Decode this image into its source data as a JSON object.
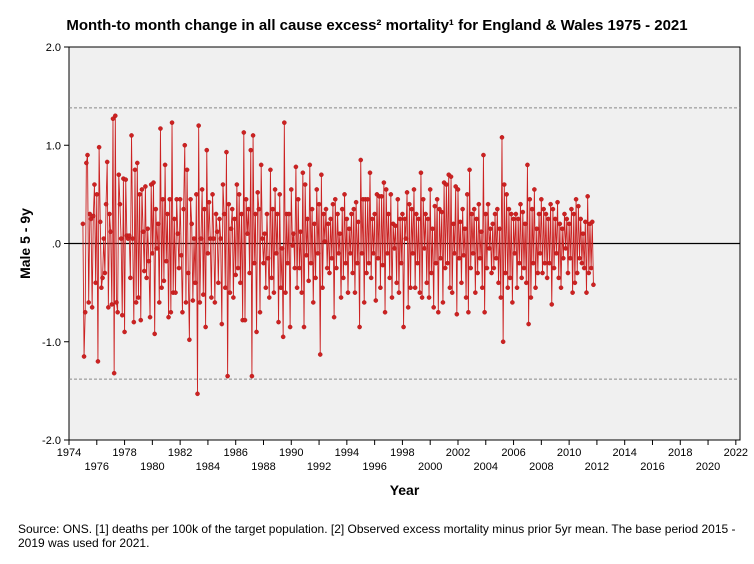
{
  "chart_data": {
    "type": "line",
    "title": "Month-to month change in all cause excess² mortality¹  for England & Wales 1975 - 2021",
    "xlabel": "Year",
    "ylabel": "Male 5 - 9y",
    "xlim": [
      1974,
      2022.3
    ],
    "ylim": [
      -2.0,
      2.0
    ],
    "x_ticks": [
      1974,
      1976,
      1978,
      1980,
      1982,
      1984,
      1986,
      1988,
      1990,
      1992,
      1994,
      1996,
      1998,
      2000,
      2002,
      2004,
      2006,
      2008,
      2010,
      2012,
      2014,
      2016,
      2018,
      2020,
      2022
    ],
    "x_tick_labels": [
      "1974",
      "1976",
      "1978",
      "1980",
      "1982",
      "1984",
      "1986",
      "1988",
      "1990",
      "1992",
      "1994",
      "1996",
      "1998",
      "2000",
      "2002",
      "2004",
      "2006",
      "2008",
      "2010",
      "2012",
      "2014",
      "2016",
      "2018",
      "2020",
      "2022"
    ],
    "y_ticks": [
      -2.0,
      -1.0,
      0.0,
      1.0,
      2.0
    ],
    "y_tick_labels": [
      "-2.0",
      "-1.0",
      ".0",
      "1.0",
      "2.0"
    ],
    "reference_lines": [
      {
        "y": 0.0,
        "style": "solid",
        "color": "#000000"
      },
      {
        "y": 1.38,
        "style": "dashed",
        "color": "#888888"
      },
      {
        "y": -1.38,
        "style": "dashed",
        "color": "#888888"
      }
    ],
    "grid": false,
    "series": [
      {
        "color": "#cc2222",
        "marker": "circle",
        "x_start": 1975.0,
        "x_step_months": 1,
        "values": [
          0.2,
          -1.15,
          -0.7,
          0.82,
          0.9,
          -0.6,
          0.3,
          0.25,
          -0.65,
          0.28,
          0.6,
          -0.4,
          0.5,
          -1.2,
          0.98,
          0.22,
          -0.45,
          -0.35,
          0.05,
          -0.3,
          0.4,
          0.83,
          -0.65,
          0.3,
          0.12,
          -0.62,
          1.27,
          -1.32,
          1.3,
          -0.6,
          -0.7,
          0.7,
          0.4,
          0.05,
          -0.73,
          0.66,
          -0.9,
          0.65,
          0.08,
          0.05,
          0.08,
          -0.35,
          1.1,
          0.05,
          -0.8,
          0.75,
          -0.6,
          0.82,
          -0.55,
          0.5,
          -0.78,
          0.55,
          0.12,
          -0.28,
          0.58,
          -0.35,
          0.15,
          -0.18,
          -0.75,
          0.6,
          -0.1,
          0.62,
          -0.92,
          0.35,
          -0.05,
          0.2,
          -0.6,
          1.17,
          -0.45,
          0.45,
          -0.38,
          0.8,
          -0.18,
          0.3,
          -0.75,
          0.45,
          -0.7,
          1.23,
          -0.5,
          0.25,
          -0.5,
          0.45,
          0.1,
          -0.25,
          0.45,
          -0.12,
          -0.7,
          0.35,
          1.0,
          -0.6,
          0.75,
          -0.3,
          -0.98,
          0.45,
          0.2,
          -0.58,
          0.05,
          -0.4,
          0.5,
          -1.53,
          1.2,
          -0.6,
          0.05,
          0.55,
          -0.52,
          0.35,
          -0.85,
          0.95,
          -0.1,
          0.42,
          0.05,
          -0.55,
          0.5,
          0.05,
          -0.6,
          0.3,
          0.12,
          -0.4,
          0.25,
          0.05,
          -0.82,
          0.6,
          0.3,
          -0.45,
          0.93,
          -1.35,
          0.4,
          -0.5,
          0.15,
          0.35,
          -0.55,
          0.25,
          -0.32,
          0.6,
          -0.25,
          0.5,
          -0.4,
          0.3,
          -0.78,
          1.13,
          -0.78,
          0.45,
          0.1,
          0.35,
          -0.3,
          0.95,
          -1.35,
          1.1,
          -0.2,
          0.3,
          -0.9,
          0.52,
          0.35,
          -0.7,
          0.8,
          0.05,
          -0.2,
          0.1,
          -0.45,
          0.3,
          -0.15,
          -0.55,
          0.75,
          -0.35,
          0.35,
          -0.5,
          0.55,
          -0.1,
          0.3,
          -0.8,
          0.5,
          -0.45,
          -0.05,
          -0.95,
          1.23,
          -0.5,
          0.3,
          -0.2,
          0.3,
          -0.85,
          0.55,
          -0.02,
          0.1,
          -0.25,
          0.78,
          -0.45,
          0.45,
          -0.25,
          0.12,
          -0.5,
          0.72,
          -0.85,
          0.6,
          -0.12,
          0.25,
          -0.38,
          0.8,
          -0.2,
          0.35,
          -0.6,
          0.2,
          -0.35,
          0.55,
          -0.1,
          0.4,
          -1.13,
          0.7,
          -0.45,
          0.3,
          0.02,
          0.35,
          -0.25,
          0.2,
          -0.3,
          0.25,
          -0.15,
          0.4,
          -0.75,
          0.45,
          -0.25,
          0.3,
          -0.1,
          0.1,
          -0.55,
          0.35,
          -0.35,
          0.5,
          -0.2,
          0.25,
          -0.5,
          0.15,
          -0.1,
          0.3,
          -0.3,
          0.35,
          -0.5,
          0.42,
          -0.2,
          0.22,
          -0.85,
          0.85,
          -0.1,
          0.45,
          -0.6,
          0.45,
          -0.3,
          0.45,
          -0.2,
          0.72,
          -0.35,
          0.25,
          -0.1,
          0.3,
          -0.58,
          0.5,
          -0.15,
          0.48,
          -0.45,
          0.48,
          -0.22,
          0.62,
          -0.7,
          0.55,
          -0.1,
          0.3,
          -0.35,
          0.5,
          -0.55,
          0.2,
          -0.05,
          0.18,
          -0.4,
          0.45,
          -0.5,
          0.25,
          -0.2,
          0.3,
          -0.85,
          0.25,
          0.05,
          0.52,
          -0.65,
          0.4,
          -0.45,
          0.35,
          -0.1,
          0.55,
          -0.45,
          0.3,
          -0.2,
          0.25,
          -0.5,
          0.72,
          -0.55,
          0.45,
          -0.05,
          0.3,
          -0.4,
          0.25,
          -0.55,
          0.55,
          -0.3,
          0.15,
          -0.65,
          0.38,
          -0.2,
          0.45,
          -0.7,
          0.35,
          -0.15,
          0.32,
          -0.6,
          0.62,
          -0.25,
          0.6,
          -0.2,
          0.7,
          -0.45,
          0.68,
          -0.5,
          0.2,
          -0.1,
          0.58,
          -0.72,
          0.55,
          -0.15,
          0.22,
          -0.4,
          0.35,
          -0.12,
          0.15,
          -0.55,
          0.5,
          -0.7,
          0.75,
          -0.25,
          0.3,
          -0.1,
          0.35,
          -0.5,
          0.25,
          -0.3,
          0.4,
          -0.15,
          0.12,
          -0.45,
          0.9,
          -0.7,
          0.3,
          -0.25,
          0.4,
          -0.05,
          0.15,
          -0.3,
          0.2,
          -0.25,
          0.3,
          -0.15,
          0.35,
          -0.4,
          0.15,
          -0.55,
          1.08,
          -1.0,
          0.6,
          -0.3,
          0.5,
          -0.45,
          0.35,
          -0.35,
          0.3,
          -0.6,
          0.25,
          -0.1,
          0.3,
          -0.45,
          0.25,
          -0.2,
          0.4,
          -0.35,
          0.32,
          -0.25,
          0.2,
          -0.4,
          0.8,
          -0.82,
          0.45,
          -0.55,
          0.35,
          -0.2,
          0.55,
          -0.45,
          0.15,
          -0.3,
          0.3,
          -0.1,
          0.45,
          -0.3,
          0.35,
          -0.2,
          0.3,
          -0.35,
          0.25,
          -0.2,
          0.4,
          -0.62,
          0.35,
          -0.25,
          0.25,
          -0.1,
          0.42,
          -0.35,
          0.2,
          -0.45,
          0.15,
          -0.15,
          0.3,
          -0.05,
          0.25,
          -0.3,
          0.2,
          -0.15,
          0.35,
          -0.5,
          0.3,
          -0.4,
          0.45,
          -0.3,
          0.38,
          -0.15,
          0.25,
          -0.2,
          0.1,
          -0.25,
          0.22,
          -0.5,
          0.48,
          -0.3,
          0.2,
          -0.25,
          0.22,
          -0.42
        ]
      }
    ]
  },
  "footnote": "Source: ONS. [1] deaths per 100k of the target population. [2] Observed excess mortality minus prior 5yr mean. The base period 2015 - 2019 was used for 2021."
}
